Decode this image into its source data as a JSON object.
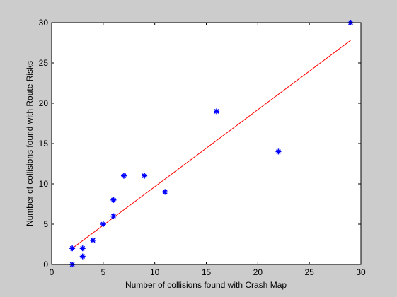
{
  "figure": {
    "background_color": "#cccccc",
    "axes_color": "#ffffff",
    "frame_color": "#000000"
  },
  "chart_data": {
    "type": "scatter",
    "xlabel": "Number of collisions found with Crash Map",
    "ylabel": "Number of collisions found with Route Risks",
    "xlim": [
      0,
      30
    ],
    "ylim": [
      0,
      30
    ],
    "x_ticks": [
      0,
      5,
      10,
      15,
      20,
      25,
      30
    ],
    "y_ticks": [
      0,
      5,
      10,
      15,
      20,
      25,
      30
    ],
    "grid": false,
    "legend": "none",
    "series": [
      {
        "marker": "asterisk",
        "color": "#0000ff",
        "points": [
          {
            "x": 2,
            "y": 0
          },
          {
            "x": 2,
            "y": 2
          },
          {
            "x": 3,
            "y": 1
          },
          {
            "x": 3,
            "y": 2
          },
          {
            "x": 4,
            "y": 3
          },
          {
            "x": 5,
            "y": 5
          },
          {
            "x": 6,
            "y": 6
          },
          {
            "x": 6,
            "y": 8
          },
          {
            "x": 7,
            "y": 11
          },
          {
            "x": 9,
            "y": 11
          },
          {
            "x": 11,
            "y": 9
          },
          {
            "x": 16,
            "y": 19
          },
          {
            "x": 22,
            "y": 14
          },
          {
            "x": 29,
            "y": 30
          }
        ]
      }
    ],
    "fit_line": {
      "color": "#ff0000",
      "start": {
        "x": 2,
        "y": 2.0
      },
      "end": {
        "x": 29,
        "y": 27.8
      }
    }
  }
}
